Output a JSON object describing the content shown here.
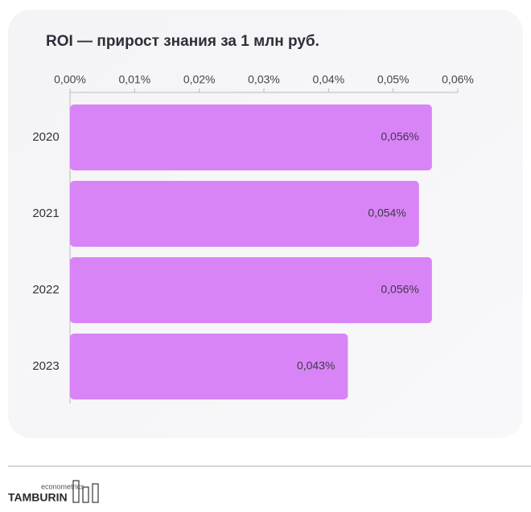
{
  "chart_data": {
    "type": "bar",
    "orientation": "horizontal",
    "title": "ROI — прирост знания за 1 млн руб.",
    "categories": [
      "2020",
      "2021",
      "2022",
      "2023"
    ],
    "values": [
      0.056,
      0.054,
      0.056,
      0.043
    ],
    "value_labels": [
      "0,056%",
      "0,054%",
      "0,056%",
      "0,043%"
    ],
    "color": "#d984f6",
    "xlim": [
      0,
      0.06
    ],
    "xticks": [
      {
        "value": 0,
        "label": "0,00%"
      },
      {
        "value": 0.01,
        "label": "0,01%"
      },
      {
        "value": 0.02,
        "label": "0,02%"
      },
      {
        "value": 0.03,
        "label": "0,03%"
      },
      {
        "value": 0.04,
        "label": "0,04%"
      },
      {
        "value": 0.05,
        "label": "0,05%"
      },
      {
        "value": 0.06,
        "label": "0,06%"
      }
    ],
    "grid": false
  },
  "footer": {
    "brand": "TAMBURIN",
    "tagline": "econometrics"
  }
}
